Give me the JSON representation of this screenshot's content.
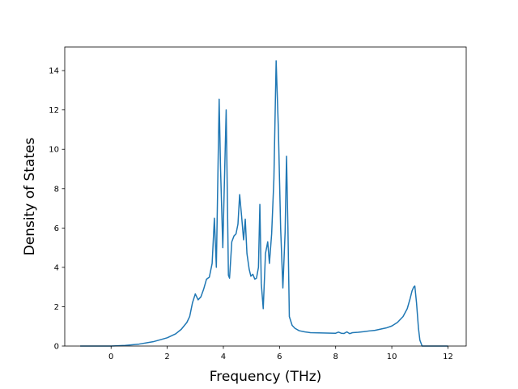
{
  "chart_data": {
    "type": "line",
    "title": "",
    "xlabel": "Frequency (THz)",
    "ylabel": "Density of States",
    "xlim": [
      -1.65,
      12.65
    ],
    "ylim": [
      0,
      15.2
    ],
    "xticks": [
      0,
      2,
      4,
      6,
      8,
      10,
      12
    ],
    "yticks": [
      0,
      2,
      4,
      6,
      8,
      10,
      12,
      14
    ],
    "grid": false,
    "legend": "none",
    "series": [
      {
        "color": "#1f77b4",
        "points": [
          [
            -1.1,
            0.0
          ],
          [
            0.0,
            0.0
          ],
          [
            0.5,
            0.03
          ],
          [
            1.0,
            0.1
          ],
          [
            1.5,
            0.22
          ],
          [
            2.0,
            0.42
          ],
          [
            2.3,
            0.62
          ],
          [
            2.5,
            0.85
          ],
          [
            2.7,
            1.2
          ],
          [
            2.8,
            1.5
          ],
          [
            2.9,
            2.2
          ],
          [
            3.0,
            2.65
          ],
          [
            3.1,
            2.35
          ],
          [
            3.2,
            2.5
          ],
          [
            3.3,
            2.9
          ],
          [
            3.4,
            3.4
          ],
          [
            3.5,
            3.5
          ],
          [
            3.6,
            4.2
          ],
          [
            3.68,
            6.5
          ],
          [
            3.75,
            4.0
          ],
          [
            3.85,
            12.55
          ],
          [
            3.9,
            9.0
          ],
          [
            3.98,
            5.0
          ],
          [
            4.1,
            12.0
          ],
          [
            4.18,
            3.6
          ],
          [
            4.22,
            3.45
          ],
          [
            4.3,
            5.3
          ],
          [
            4.38,
            5.6
          ],
          [
            4.45,
            5.7
          ],
          [
            4.52,
            6.2
          ],
          [
            4.58,
            7.7
          ],
          [
            4.65,
            6.6
          ],
          [
            4.72,
            5.4
          ],
          [
            4.78,
            6.45
          ],
          [
            4.84,
            4.7
          ],
          [
            4.92,
            3.9
          ],
          [
            4.98,
            3.55
          ],
          [
            5.05,
            3.65
          ],
          [
            5.12,
            3.4
          ],
          [
            5.18,
            3.45
          ],
          [
            5.25,
            4.0
          ],
          [
            5.3,
            7.2
          ],
          [
            5.35,
            3.2
          ],
          [
            5.42,
            1.9
          ],
          [
            5.5,
            4.7
          ],
          [
            5.58,
            5.3
          ],
          [
            5.64,
            4.2
          ],
          [
            5.72,
            5.7
          ],
          [
            5.8,
            8.5
          ],
          [
            5.88,
            14.5
          ],
          [
            5.96,
            11.0
          ],
          [
            6.04,
            6.0
          ],
          [
            6.12,
            2.95
          ],
          [
            6.2,
            5.8
          ],
          [
            6.25,
            9.65
          ],
          [
            6.3,
            6.0
          ],
          [
            6.35,
            1.5
          ],
          [
            6.45,
            1.05
          ],
          [
            6.55,
            0.9
          ],
          [
            6.7,
            0.78
          ],
          [
            6.9,
            0.72
          ],
          [
            7.1,
            0.68
          ],
          [
            7.4,
            0.67
          ],
          [
            7.7,
            0.66
          ],
          [
            8.0,
            0.65
          ],
          [
            8.1,
            0.71
          ],
          [
            8.2,
            0.65
          ],
          [
            8.3,
            0.64
          ],
          [
            8.4,
            0.72
          ],
          [
            8.5,
            0.63
          ],
          [
            8.6,
            0.68
          ],
          [
            8.8,
            0.7
          ],
          [
            9.0,
            0.73
          ],
          [
            9.2,
            0.77
          ],
          [
            9.4,
            0.8
          ],
          [
            9.6,
            0.86
          ],
          [
            9.8,
            0.92
          ],
          [
            10.0,
            1.02
          ],
          [
            10.2,
            1.2
          ],
          [
            10.4,
            1.5
          ],
          [
            10.55,
            1.9
          ],
          [
            10.65,
            2.4
          ],
          [
            10.72,
            2.8
          ],
          [
            10.78,
            3.0
          ],
          [
            10.82,
            3.05
          ],
          [
            10.88,
            2.2
          ],
          [
            10.95,
            0.9
          ],
          [
            11.0,
            0.3
          ],
          [
            11.08,
            0.0
          ],
          [
            12.0,
            0.0
          ]
        ]
      }
    ]
  }
}
